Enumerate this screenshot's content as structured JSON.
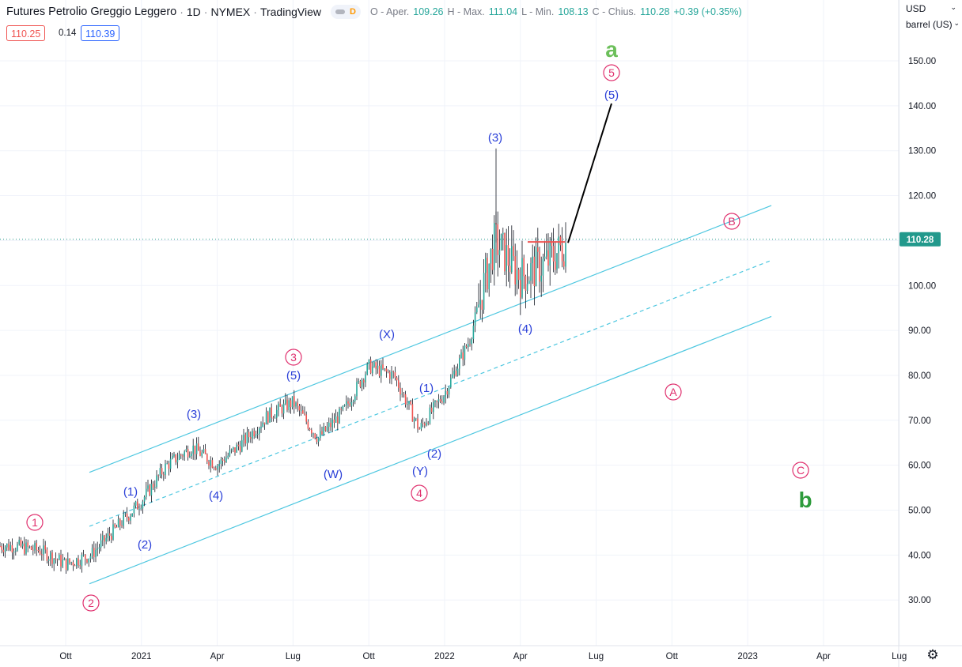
{
  "header": {
    "title": "Futures Petrolio Greggio Leggero",
    "interval": "1D",
    "exchange": "NYMEX",
    "source": "TradingView",
    "badge": "D",
    "ohlc": {
      "o_label": "O - Aper.",
      "o": "109.26",
      "h_label": "H - Max.",
      "h": "111.04",
      "l_label": "L - Min.",
      "l": "108.13",
      "c_label": "C - Chius.",
      "c": "110.28",
      "change": "+0.39 (+0.35%)"
    },
    "bid": "110.25",
    "spread": "0.14",
    "ask": "110.39"
  },
  "scale": {
    "currency": "USD",
    "unit": "barrel (US)",
    "current_price": "110.28",
    "price_ticks": [
      "150.00",
      "140.00",
      "130.00",
      "120.00",
      "110.00",
      "100.00",
      "90.00",
      "80.00",
      "70.00",
      "60.00",
      "50.00",
      "40.00",
      "30.00"
    ],
    "time_ticks": [
      "Ott",
      "2021",
      "Apr",
      "Lug",
      "Ott",
      "2022",
      "Apr",
      "Lug",
      "Ott",
      "2023",
      "Apr",
      "Lug"
    ]
  },
  "colors": {
    "up": "#26a69a",
    "down": "#ef5350",
    "candle": "#131722",
    "channel": "#4dc7e0",
    "wave_blue": "#2a3fd8",
    "wave_pink": "#e0306e",
    "wave_green": "#2e9b3c",
    "wave_lightgreen": "#6cbf5a",
    "price_tag": "#22998c"
  },
  "chart_data": {
    "type": "line",
    "title": "Futures Petrolio Greggio Leggero · 1D · NYMEX",
    "xlabel": "",
    "ylabel": "",
    "ylim": [
      20,
      160
    ],
    "x": [
      "2020-08",
      "2020-09",
      "2020-10",
      "2020-11",
      "2020-12",
      "2021-01",
      "2021-02",
      "2021-03",
      "2021-04",
      "2021-05",
      "2021-06",
      "2021-07",
      "2021-08",
      "2021-09",
      "2021-10",
      "2021-11",
      "2021-12",
      "2022-01",
      "2022-02",
      "2022-03",
      "2022-04",
      "2022-05",
      "2022-06"
    ],
    "series": [
      {
        "values": [
          42,
          41,
          38,
          40,
          46,
          52,
          60,
          64,
          60,
          65,
          71,
          74,
          66,
          72,
          82,
          80,
          68,
          76,
          88,
          110,
          102,
          105,
          110.28
        ]
      }
    ],
    "last_price": 110.28,
    "wave_labels": [
      {
        "text": "1",
        "date": "2020-08",
        "price": 48
      },
      {
        "text": "2",
        "date": "2020-11",
        "price": 31
      },
      {
        "text": "(1)",
        "date": "2020-12",
        "price": 56
      },
      {
        "text": "(2)",
        "date": "2020-12",
        "price": 41
      },
      {
        "text": "(3)",
        "date": "2021-03",
        "price": 70
      },
      {
        "text": "(4)",
        "date": "2021-04",
        "price": 54
      },
      {
        "text": "(5)",
        "date": "2021-07",
        "price": 79
      },
      {
        "text": "3",
        "date": "2021-07",
        "price": 83
      },
      {
        "text": "(W)",
        "date": "2021-08",
        "price": 58
      },
      {
        "text": "(X)",
        "date": "2021-10",
        "price": 87
      },
      {
        "text": "(Y)",
        "date": "2021-12",
        "price": 59
      },
      {
        "text": "4",
        "date": "2021-12",
        "price": 55
      },
      {
        "text": "(1)",
        "date": "2021-12",
        "price": 77
      },
      {
        "text": "(2)",
        "date": "2022-01",
        "price": 62
      },
      {
        "text": "(3)",
        "date": "2022-03",
        "price": 132
      },
      {
        "text": "(4)",
        "date": "2022-04",
        "price": 90
      },
      {
        "text": "(5)",
        "date": "2022-08",
        "price": 143
      },
      {
        "text": "5",
        "date": "2022-08",
        "price": 148
      },
      {
        "text": "a",
        "date": "2022-08",
        "price": 153
      },
      {
        "text": "A",
        "date": "2022-10",
        "price": 77
      },
      {
        "text": "B",
        "date": "2022-12",
        "price": 115
      },
      {
        "text": "C",
        "date": "2023-03",
        "price": 60
      },
      {
        "text": "b",
        "date": "2023-03",
        "price": 53
      }
    ]
  }
}
